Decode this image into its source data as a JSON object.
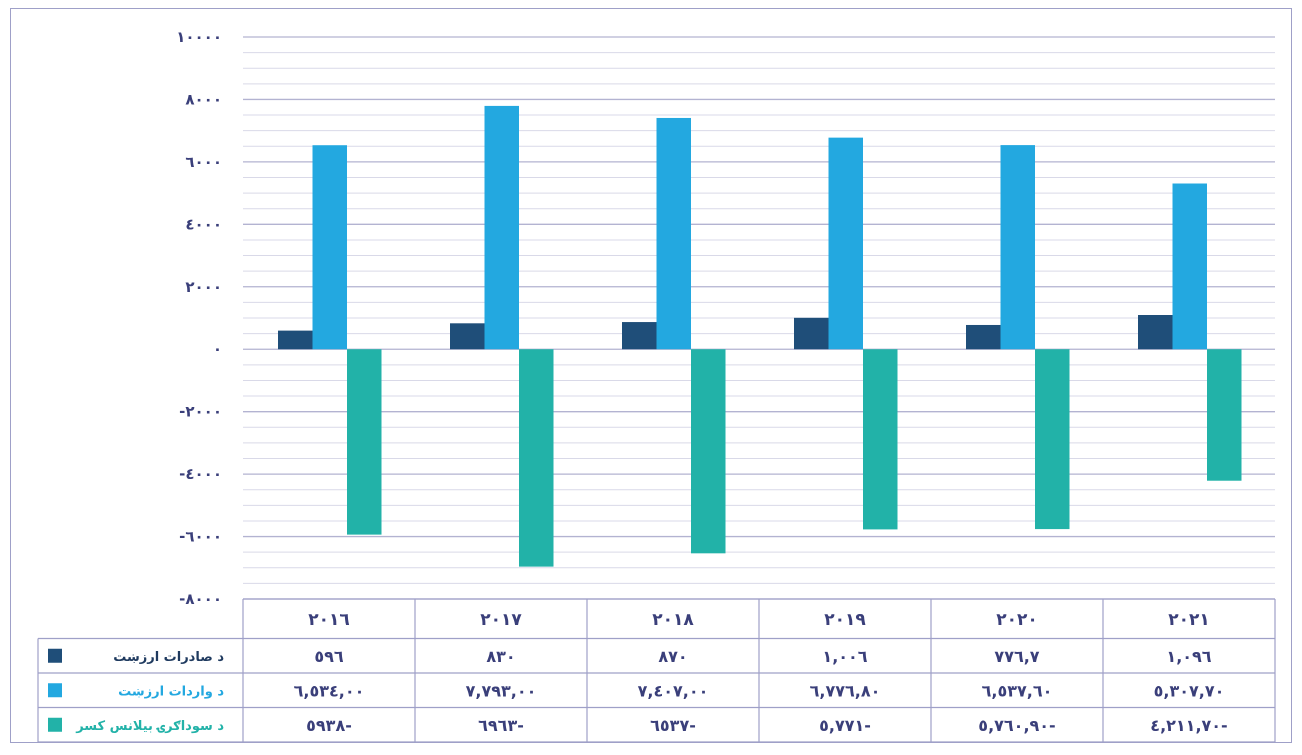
{
  "chart_data": {
    "type": "bar",
    "title": "",
    "xlabel": "",
    "ylabel": "",
    "ylim": [
      -8000,
      10000
    ],
    "yticks": [
      10000,
      8000,
      6000,
      4000,
      2000,
      0,
      -2000,
      -4000,
      -6000,
      -8000
    ],
    "ytick_labels": [
      "١٠٠٠٠",
      "٨٠٠٠",
      "٦٠٠٠",
      "٤٠٠٠",
      "٢٠٠٠",
      "٠",
      "-٢٠٠٠",
      "-٤٠٠٠",
      "-٦٠٠٠",
      "-٨٠٠٠"
    ],
    "categories": [
      2016,
      2017,
      2018,
      2019,
      2020,
      2021
    ],
    "category_labels": [
      "٢٠١٦",
      "٢٠١٧",
      "٢٠١٨",
      "٢٠١٩",
      "٢٠٢٠",
      "٢٠٢١"
    ],
    "grid": true,
    "legend_position": "bottom data table, left",
    "series": [
      {
        "name": "د صادرات ارزښت",
        "color": "#1f4e79",
        "values": [
          596,
          830,
          870,
          1006,
          776.7,
          1096
        ],
        "table_values": [
          "٥٩٦",
          "٨٣٠",
          "٨٧٠",
          "١,٠٠٦",
          "٧٧٦,٧",
          "١,٠٩٦"
        ]
      },
      {
        "name": "د واردات ارزښت",
        "color": "#23a8e0",
        "values": [
          6534,
          7793,
          7407,
          6776.8,
          6537.6,
          5307.7
        ],
        "table_values": [
          "٦,٥٣٤,٠٠",
          "٧,٧٩٣,٠٠",
          "٧,٤٠٧,٠٠",
          "٦,٧٧٦,٨٠",
          "٦,٥٣٧,٦٠",
          "٥,٣٠٧,٧٠"
        ]
      },
      {
        "name": "د سوداګرۍ بیلانس کسر",
        "color": "#22b2a8",
        "values": [
          -5938,
          -6963,
          -6537,
          -5771,
          -5760.9,
          -4211.7
        ],
        "table_values": [
          "٥٩٣٨-",
          "٦٩٦٣-",
          "٦٥٣٧-",
          "٥,٧٧١-",
          "٥,٧٦٠,٩٠-",
          "٤,٢١١,٧٠-"
        ]
      }
    ]
  }
}
